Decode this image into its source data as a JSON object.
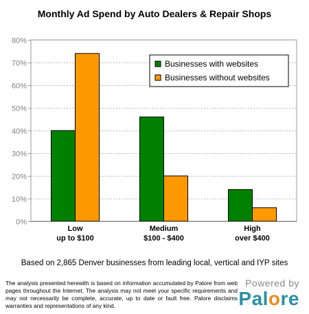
{
  "chart_data": {
    "type": "bar",
    "title": "Monthly Ad Spend by Auto Dealers & Repair Shops",
    "categories": [
      [
        "Low",
        "up to $100"
      ],
      [
        "Medium",
        "$100 - $400"
      ],
      [
        "High",
        "over $400"
      ]
    ],
    "series": [
      {
        "name": "Businesses with websites",
        "values": [
          40,
          46,
          14
        ],
        "color": "#008000"
      },
      {
        "name": "Businesses without websites",
        "values": [
          74,
          20,
          6
        ],
        "color": "#ff9900"
      }
    ],
    "ylim": [
      0,
      80
    ],
    "yticks": [
      0,
      10,
      20,
      30,
      40,
      50,
      60,
      70,
      80
    ],
    "ytick_labels": [
      "0%",
      "10%",
      "20%",
      "30%",
      "40%",
      "50%",
      "60%",
      "70%",
      "80%"
    ],
    "grid": true,
    "legend_position": "top-right"
  },
  "caption": "Based on 2,865 Denver businesses from leading local, vertical and IYP sites",
  "disclaimer": "The analysis presented herewith is based on information accumulated by Palore from web pages throughout the Internet. The analysis may not meet your specific requirements and may not necessarily be complete, accurate, up to date or fault free. Palore disclaims warranties and representations of any kind.",
  "brand": {
    "powered_by": "Powered by",
    "logo_main": "Pal",
    "logo_accent": "o",
    "logo_end": "re"
  }
}
